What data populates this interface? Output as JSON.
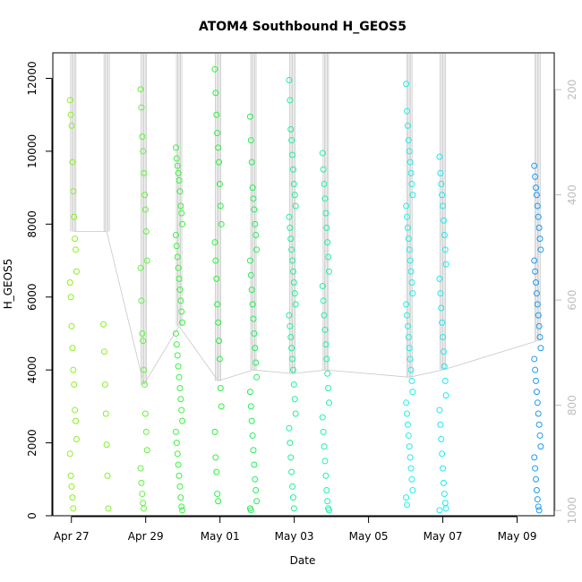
{
  "chart_data": {
    "type": "scatter",
    "title": "ATOM4 Southbound H_GEOS5",
    "xlabel": "Date",
    "ylabel": "H_GEOS5",
    "x_ticks": [
      "Apr 27",
      "Apr 29",
      "May 01",
      "May 03",
      "May 05",
      "May 07",
      "May 09"
    ],
    "x_tick_days": [
      0,
      2,
      4,
      6,
      8,
      10,
      12
    ],
    "xlim_days": [
      -0.5,
      13.0
    ],
    "y_ticks": [
      "0",
      "2000",
      "4000",
      "6000",
      "8000",
      "10000",
      "12000"
    ],
    "y_tick_values": [
      0,
      2000,
      4000,
      6000,
      8000,
      10000,
      12000
    ],
    "ylim": [
      0,
      12700
    ],
    "right_axis": {
      "label": "",
      "ticks": [
        "200",
        "400",
        "600",
        "800",
        "1000"
      ],
      "tick_values": [
        200,
        400,
        600,
        800,
        1000
      ],
      "range": [
        130,
        1010
      ],
      "color": "#bdbdbd"
    },
    "profiles": [
      {
        "day": 0.05,
        "color": "#8cf020",
        "values": [
          11400,
          11000,
          10700,
          9700,
          8900,
          8200,
          7600,
          7300,
          6700,
          6400,
          6000,
          5200,
          4600,
          4000,
          3600,
          2900,
          2600,
          2100,
          1700,
          1100,
          800,
          500,
          200
        ],
        "line_from": 7800
      },
      {
        "day": 0.95,
        "color": "#84f224",
        "values": [
          5250,
          4500,
          3600,
          2800,
          1950,
          1100,
          200
        ],
        "line_from": 7800
      },
      {
        "day": 1.95,
        "color": "#60f43c",
        "values": [
          11700,
          11200,
          10400,
          10000,
          9400,
          8800,
          8400,
          7800,
          7000,
          6800,
          5900,
          5000,
          4800,
          4000,
          3600,
          2800,
          2300,
          1800,
          1300,
          900,
          600,
          350,
          200
        ],
        "line_from": 3600
      },
      {
        "day": 2.9,
        "color": "#3cf240",
        "values": [
          10100,
          9800,
          9600,
          9400,
          9200,
          8900,
          8500,
          8300,
          8000,
          7700,
          7400,
          7100,
          6800,
          6500,
          6200,
          5900,
          5600,
          5300,
          5000,
          4700,
          4400,
          4100,
          3800,
          3500,
          3200,
          2900,
          2600,
          2300,
          2000,
          1700,
          1400,
          1100,
          800,
          500,
          250,
          150
        ],
        "line_from": 5200
      },
      {
        "day": 3.95,
        "color": "#2cf040",
        "values": [
          12250,
          11600,
          11000,
          10500,
          10100,
          9700,
          9100,
          8500,
          8000,
          7500,
          7000,
          6500,
          5800,
          5300,
          4800,
          4300,
          3500,
          3000,
          2300,
          1600,
          1200,
          600,
          400
        ],
        "line_from": 3700
      },
      {
        "day": 4.9,
        "color": "#24f05a",
        "values": [
          10950,
          10300,
          9700,
          9000,
          8700,
          8400,
          8000,
          7700,
          7300,
          7000,
          6600,
          6200,
          5800,
          5400,
          5000,
          4600,
          4200,
          3800,
          3400,
          3000,
          2600,
          2200,
          1800,
          1400,
          1000,
          700,
          400,
          200,
          150
        ],
        "line_from": 4000
      },
      {
        "day": 5.95,
        "color": "#20f098",
        "values": [
          11950,
          11400,
          10600,
          10300,
          9900,
          9500,
          9100,
          8800,
          8500,
          8200,
          7900,
          7600,
          7300,
          7000,
          6700,
          6400,
          6100,
          5800,
          5500,
          5200,
          4900,
          4600,
          4300,
          4000,
          3600,
          3200,
          2800,
          2400,
          2000,
          1600,
          1200,
          800,
          500,
          200
        ],
        "line_from": 3900
      },
      {
        "day": 6.85,
        "color": "#20f0b0",
        "values": [
          9950,
          9500,
          9100,
          8700,
          8300,
          7900,
          7500,
          7100,
          6700,
          6300,
          5900,
          5500,
          5100,
          4700,
          4300,
          3900,
          3500,
          3100,
          2700,
          2300,
          1900,
          1500,
          1100,
          700,
          400,
          200,
          150
        ],
        "line_from": 4000
      },
      {
        "day": 9.1,
        "color": "#20f0e6",
        "values": [
          11850,
          11100,
          10700,
          10300,
          10000,
          9700,
          9400,
          9100,
          8800,
          8500,
          8200,
          7900,
          7600,
          7300,
          7000,
          6700,
          6400,
          6100,
          5800,
          5500,
          5200,
          4900,
          4600,
          4300,
          4000,
          3700,
          3400,
          3100,
          2800,
          2500,
          2200,
          1900,
          1600,
          1300,
          1000,
          700,
          500,
          300
        ],
        "line_from": 3800
      },
      {
        "day": 10.0,
        "color": "#20e8f0",
        "values": [
          9850,
          9400,
          9100,
          8800,
          8500,
          8100,
          7700,
          7300,
          6900,
          6500,
          6100,
          5700,
          5300,
          4900,
          4500,
          4100,
          3700,
          3300,
          2900,
          2500,
          2100,
          1700,
          1300,
          900,
          600,
          350,
          200,
          150
        ],
        "line_from": 4000
      },
      {
        "day": 12.55,
        "color": "#1e9af0",
        "values": [
          9600,
          9300,
          9000,
          8800,
          8500,
          8200,
          7900,
          7600,
          7300,
          7000,
          6700,
          6400,
          6100,
          5800,
          5500,
          5200,
          4900,
          4600,
          4300,
          4000,
          3700,
          3400,
          3100,
          2800,
          2500,
          2200,
          1900,
          1600,
          1300,
          1000,
          700,
          450,
          250,
          150
        ],
        "line_from": 4800
      }
    ],
    "grid": false,
    "legend": "none"
  }
}
